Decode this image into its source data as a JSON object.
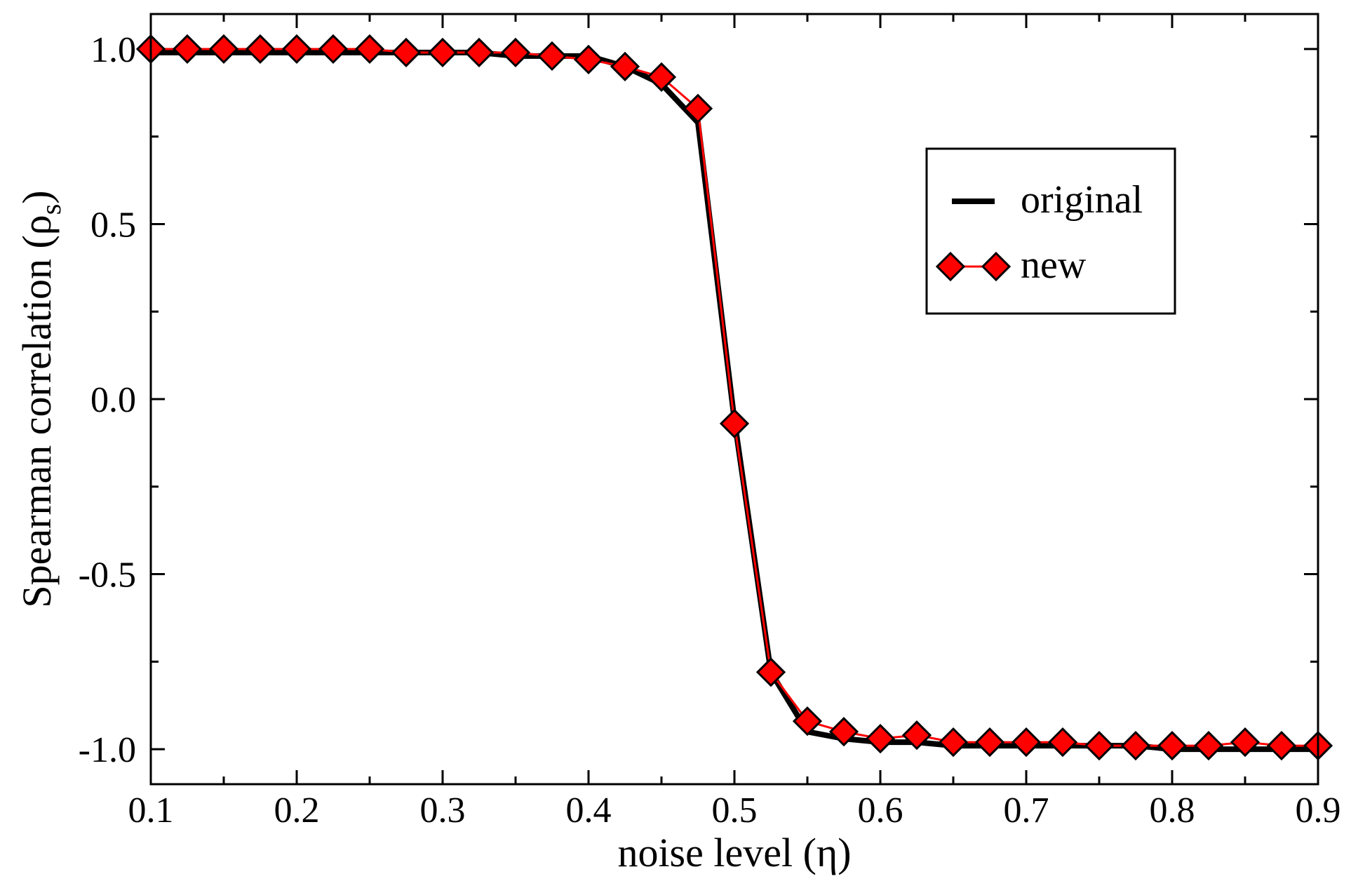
{
  "chart_data": {
    "type": "line",
    "title": "",
    "xlabel": "noise level (η)",
    "ylabel_main": "Spearman correlation (ρ",
    "ylabel_sub": "s",
    "ylabel_close": ")",
    "xlim": [
      0.1,
      0.9
    ],
    "ylim": [
      -1.1,
      1.1
    ],
    "x_ticks": [
      0.1,
      0.2,
      0.3,
      0.4,
      0.5,
      0.6,
      0.7,
      0.8,
      0.9
    ],
    "x_tick_labels": [
      "0.1",
      "0.2",
      "0.3",
      "0.4",
      "0.5",
      "0.6",
      "0.7",
      "0.8",
      "0.9"
    ],
    "y_ticks": [
      1.0,
      0.5,
      0.0,
      -0.5,
      -1.0
    ],
    "y_tick_labels": [
      "1.0",
      "0.5",
      "0.0",
      "-0.5",
      "-1.0"
    ],
    "grid": false,
    "legend_position": "upper right",
    "series": [
      {
        "name": "original",
        "color": "#000000",
        "marker": "none",
        "x": [
          0.1,
          0.125,
          0.15,
          0.175,
          0.2,
          0.225,
          0.25,
          0.275,
          0.3,
          0.325,
          0.35,
          0.375,
          0.4,
          0.425,
          0.45,
          0.475,
          0.5,
          0.525,
          0.55,
          0.575,
          0.6,
          0.625,
          0.65,
          0.675,
          0.7,
          0.725,
          0.75,
          0.775,
          0.8,
          0.825,
          0.85,
          0.875,
          0.9
        ],
        "y": [
          0.99,
          0.99,
          0.99,
          0.99,
          0.99,
          0.99,
          0.99,
          0.99,
          0.99,
          0.99,
          0.98,
          0.98,
          0.98,
          0.95,
          0.9,
          0.79,
          -0.06,
          -0.78,
          -0.95,
          -0.97,
          -0.98,
          -0.98,
          -0.99,
          -0.99,
          -0.99,
          -0.99,
          -0.99,
          -0.99,
          -1.0,
          -1.0,
          -1.0,
          -1.0,
          -1.0
        ]
      },
      {
        "name": "new",
        "color": "#ff0000",
        "marker": "diamond",
        "x": [
          0.1,
          0.125,
          0.15,
          0.175,
          0.2,
          0.225,
          0.25,
          0.275,
          0.3,
          0.325,
          0.35,
          0.375,
          0.4,
          0.425,
          0.45,
          0.475,
          0.5,
          0.525,
          0.55,
          0.575,
          0.6,
          0.625,
          0.65,
          0.675,
          0.7,
          0.725,
          0.75,
          0.775,
          0.8,
          0.825,
          0.85,
          0.875,
          0.9
        ],
        "y": [
          1.0,
          1.0,
          1.0,
          1.0,
          1.0,
          1.0,
          1.0,
          0.99,
          0.99,
          0.99,
          0.99,
          0.98,
          0.97,
          0.95,
          0.92,
          0.83,
          -0.07,
          -0.78,
          -0.92,
          -0.95,
          -0.97,
          -0.96,
          -0.98,
          -0.98,
          -0.98,
          -0.98,
          -0.99,
          -0.99,
          -0.99,
          -0.99,
          -0.98,
          -0.99,
          -0.99
        ]
      }
    ]
  }
}
